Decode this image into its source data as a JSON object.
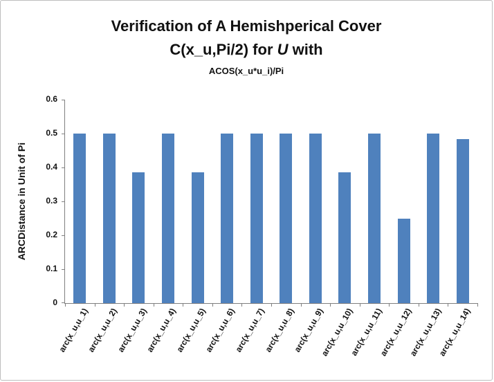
{
  "chart_data": {
    "type": "bar",
    "title_line1": "Verification of A Hemishperical Cover",
    "title_line2_pre": "C(x_u,Pi/2) for ",
    "title_line2_italic": "U",
    "title_line2_post": " with",
    "subtitle": "ACOS(x_u*u_i)/Pi",
    "xlabel": "",
    "ylabel": "ARCDistance in Unit of Pi",
    "categories": [
      "arc(x_u,u_1)",
      "arc(x_u,u_2)",
      "arc(x_u,u_3)",
      "arc(x_u,u_4)",
      "arc(x_u,u_5)",
      "arc(x_u,u_6)",
      "arc(x_u,u_7)",
      "arc(x_u,u_8)",
      "arc(x_u,u_9)",
      "arc(x_u,u_10)",
      "arc(x_u,u_11)",
      "arc(x_u,u_12)",
      "arc(x_u,u_13)",
      "arc(x_u,u_14)"
    ],
    "values": [
      0.5,
      0.5,
      0.385,
      0.5,
      0.385,
      0.5,
      0.5,
      0.5,
      0.5,
      0.385,
      0.5,
      0.25,
      0.5,
      0.483
    ],
    "ylim": [
      0,
      0.6
    ],
    "yticks": [
      "0",
      "0.1",
      "0.2",
      "0.3",
      "0.4",
      "0.5",
      "0.6"
    ],
    "bar_color": "#4F81BD",
    "grid": false,
    "legend": false
  }
}
